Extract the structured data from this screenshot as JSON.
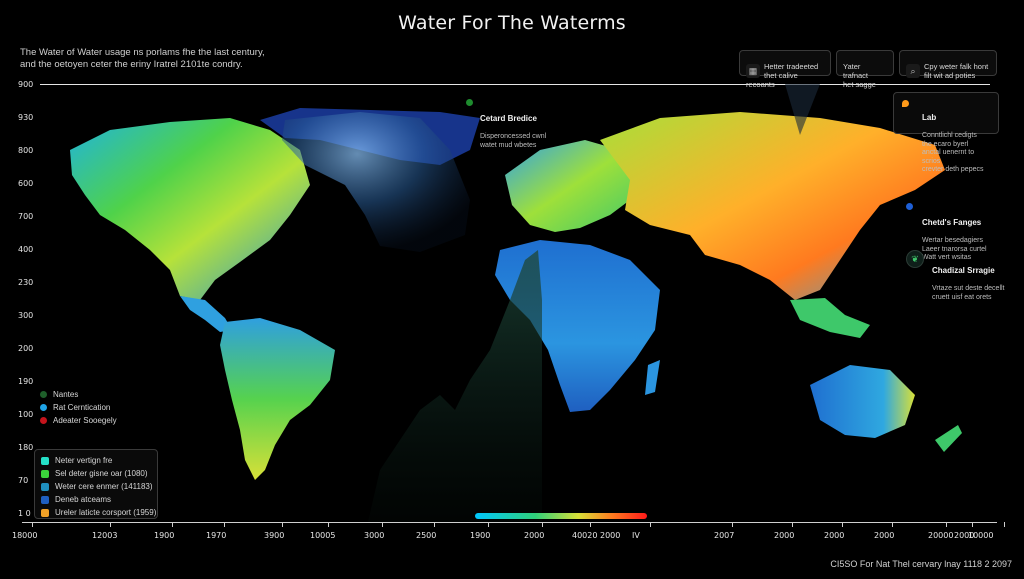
{
  "title": "Water For The Waterms",
  "subtitle": "The Water of Water usage ns porlams fhe the last century,\nand the oetoyen ceter the eriny Iratrel 2101te condry.",
  "y_axis_labels": [
    "900",
    "930",
    "800",
    "600",
    "700",
    "400",
    "230",
    "300",
    "200",
    "190",
    "100",
    "180",
    "70",
    "1 0"
  ],
  "x_axis_labels": [
    "18000",
    "12003",
    "1900",
    "1970",
    "3900",
    "10005",
    "3000",
    "2500",
    "1900",
    "2000",
    "40020 2000",
    "IV",
    "2007",
    "2000",
    "2000",
    "2000",
    "20000",
    "2000",
    "10000"
  ],
  "top_chips": [
    {
      "icon": "grid-icon",
      "text": "Hetter tradeeted\nthet calive recoants"
    },
    {
      "icon": "none",
      "text": "Yater trafnact\nhet sagge"
    },
    {
      "icon": "search-icon",
      "text": "Cpy weter falk hont\nfilt wit ad poties"
    }
  ],
  "callouts": {
    "central": {
      "title": "Cetard Bredice",
      "text": "Disperoncessed cwnl\nwatet mud wbetes",
      "color": "#1e8c2e"
    },
    "lab": {
      "title": "Lab",
      "text": "Conntlichl cedigts\nthe ecaro byerl\nanctal uenernt to scrios\ncrevter deth pepecs",
      "color": "#ff9a1a"
    },
    "charges": {
      "title": "Chetd's Fanges",
      "text": "Wertar besedagiers\nLaeer tnarorsa curtel\nWatt vert wsitas",
      "color": "#1e5fd6"
    },
    "strategy": {
      "title": "Chadizal Srragie",
      "text": "Vrtaze sut deste decellt\ncruett uisf eat orets",
      "icon": "leaf-icon"
    }
  },
  "category_legend": [
    {
      "label": "Nantes",
      "color": "#1e5f2a"
    },
    {
      "label": "Rat Cerntication",
      "color": "#1fa4e6"
    },
    {
      "label": "Adeater Sooegely",
      "color": "#c4141c"
    }
  ],
  "bottom_legend": [
    {
      "label": "Neter vertign fre",
      "color": "#25e0c8"
    },
    {
      "label": "Sel deter gisne oar (1080)",
      "color": "#3bd43b"
    },
    {
      "label": "Weter cere enmer (141183)",
      "color": "#1f8fbf"
    },
    {
      "label": "Deneb atceams",
      "color": "#1f5fc0"
    },
    {
      "label": "Ureler laticte corsport (1959)",
      "color": "#f2a227"
    }
  ],
  "scale_colors": [
    "#00c8ff",
    "#2fd07a",
    "#d8e038",
    "#ff7a1f",
    "#ff1a1a"
  ],
  "footer": "CI5SO For Nat Thel cervary lnay 1118 2 2097"
}
